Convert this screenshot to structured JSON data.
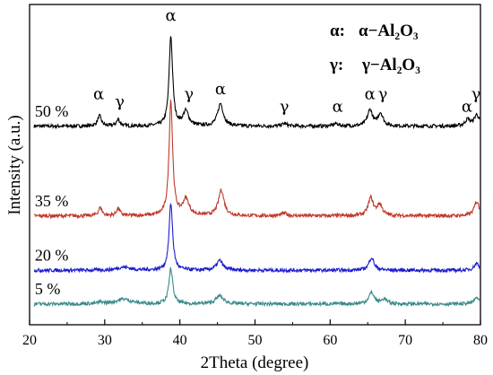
{
  "chart_data": {
    "type": "line",
    "xlabel": "2Theta  (degree)",
    "ylabel": "Intensity (a.u.)",
    "xlim": [
      20,
      80
    ],
    "x_ticks": [
      "20",
      "30",
      "40",
      "50",
      "60",
      "70",
      "80"
    ],
    "legend": {
      "placement": "top-right",
      "entries": [
        {
          "symbol": "α:",
          "formula": "α−Al₂O₃"
        },
        {
          "symbol": "γ:",
          "formula": "γ−Al₂O₃"
        }
      ]
    },
    "peaks": [
      {
        "name": "α",
        "x": 38.8,
        "y": 95.0
      },
      {
        "name": "α",
        "x": 29.2,
        "y": 70.5
      },
      {
        "name": "γ",
        "x": 32.0,
        "y": 68.0
      },
      {
        "name": "γ",
        "x": 41.2,
        "y": 70.5
      },
      {
        "name": "α",
        "x": 45.4,
        "y": 72.0
      },
      {
        "name": "γ",
        "x": 53.9,
        "y": 66.5
      },
      {
        "name": "α",
        "x": 61.0,
        "y": 66.5
      },
      {
        "name": "α",
        "x": 65.3,
        "y": 70.5
      },
      {
        "name": "γ",
        "x": 67.0,
        "y": 70.5
      },
      {
        "name": "α",
        "x": 78.2,
        "y": 66.5
      },
      {
        "name": "γ",
        "x": 79.4,
        "y": 70.5
      }
    ],
    "series": [
      {
        "name": "50 %",
        "color": "#000000",
        "baseline": 62,
        "label_x": 20.7,
        "peaks": [
          [
            38.8,
            28,
            0.28
          ],
          [
            29.3,
            3.2,
            0.3
          ],
          [
            31.8,
            2.0,
            0.3
          ],
          [
            40.8,
            4.5,
            0.45
          ],
          [
            45.4,
            7,
            0.45
          ],
          [
            65.3,
            5,
            0.4
          ],
          [
            66.7,
            4,
            0.4
          ],
          [
            78.3,
            2.0,
            0.4
          ],
          [
            79.5,
            3.5,
            0.4
          ],
          [
            53.9,
            0.8,
            0.4
          ],
          [
            60.8,
            0.8,
            0.4
          ]
        ]
      },
      {
        "name": "35 %",
        "color": "#c0392b",
        "baseline": 34,
        "label_x": 20.7,
        "peaks": [
          [
            38.8,
            36,
            0.28
          ],
          [
            29.4,
            2.5,
            0.3
          ],
          [
            31.8,
            2.2,
            0.3
          ],
          [
            40.8,
            5,
            0.5
          ],
          [
            45.5,
            8,
            0.45
          ],
          [
            65.4,
            5.5,
            0.4
          ],
          [
            66.6,
            3.5,
            0.4
          ],
          [
            79.5,
            4.5,
            0.4
          ],
          [
            53.9,
            0.8,
            0.4
          ]
        ]
      },
      {
        "name": "20 %",
        "color": "#1c1ccf",
        "baseline": 17,
        "label_x": 20.7,
        "peaks": [
          [
            38.8,
            21,
            0.28
          ],
          [
            45.3,
            3.0,
            0.5
          ],
          [
            65.5,
            4.0,
            0.4
          ],
          [
            79.5,
            2.2,
            0.4
          ],
          [
            32.5,
            1.0,
            1.0
          ]
        ]
      },
      {
        "name": "5 %",
        "color": "#3a8a8a",
        "baseline": 6.5,
        "label_x": 20.7,
        "peaks": [
          [
            38.8,
            11,
            0.3
          ],
          [
            45.3,
            2.5,
            0.6
          ],
          [
            65.5,
            3.5,
            0.45
          ],
          [
            67.2,
            1.5,
            0.4
          ],
          [
            79.5,
            2.0,
            0.4
          ],
          [
            32.5,
            1.5,
            1.2
          ],
          [
            29.5,
            0.5,
            0.4
          ]
        ]
      }
    ]
  }
}
